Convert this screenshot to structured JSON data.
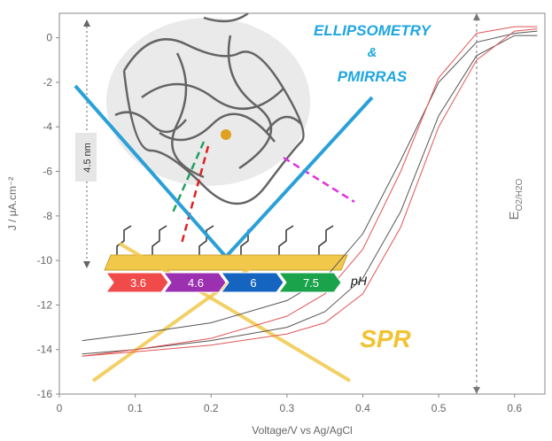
{
  "chart_data": {
    "type": "line",
    "x_label": "Voltage/V vs Ag/AgCl",
    "y_label": "J / μA.cm⁻²",
    "x": [
      0.03,
      0.1,
      0.2,
      0.3,
      0.35,
      0.4,
      0.45,
      0.5,
      0.55,
      0.6,
      0.63
    ],
    "series": [
      {
        "color": "#555555",
        "values": [
          -13.6,
          -13.3,
          -12.8,
          -11.8,
          -10.8,
          -8.8,
          -5.5,
          -2.0,
          -0.2,
          0.2,
          0.3
        ]
      },
      {
        "color": "#555555",
        "values": [
          -14.2,
          -14.0,
          -13.6,
          -13.0,
          -12.3,
          -10.8,
          -7.8,
          -3.5,
          -0.8,
          0.1,
          0.1
        ]
      },
      {
        "color": "#e05555",
        "values": [
          -14.3,
          -14.0,
          -13.5,
          -12.5,
          -11.5,
          -9.5,
          -6.0,
          -1.8,
          0.2,
          0.5,
          0.5
        ]
      },
      {
        "color": "#e05555",
        "values": [
          -14.3,
          -14.1,
          -13.8,
          -13.3,
          -12.8,
          -11.5,
          -8.5,
          -4.0,
          -1.0,
          0.3,
          0.4
        ]
      }
    ],
    "xlim": [
      0,
      0.64
    ],
    "ylim": [
      -16,
      1.1
    ],
    "xticks": [
      0,
      0.1,
      0.2,
      0.3,
      0.4,
      0.5,
      0.6
    ],
    "yticks": [
      0,
      -2,
      -4,
      -6,
      -8,
      -10,
      -12,
      -14,
      -16
    ],
    "vline_x": 0.55,
    "vline_label": {
      "main": "E",
      "sub": "O2/H2O"
    },
    "annotations": {
      "ellipsometry": "ELLIPSOMETRY",
      "and": "&",
      "pmirras": "PMIRRAS",
      "spr": "SPR",
      "thickness": "4.5 nm",
      "ph": "pH"
    },
    "ph_values": [
      "3.6",
      "4.6",
      "6",
      "7.5"
    ]
  }
}
